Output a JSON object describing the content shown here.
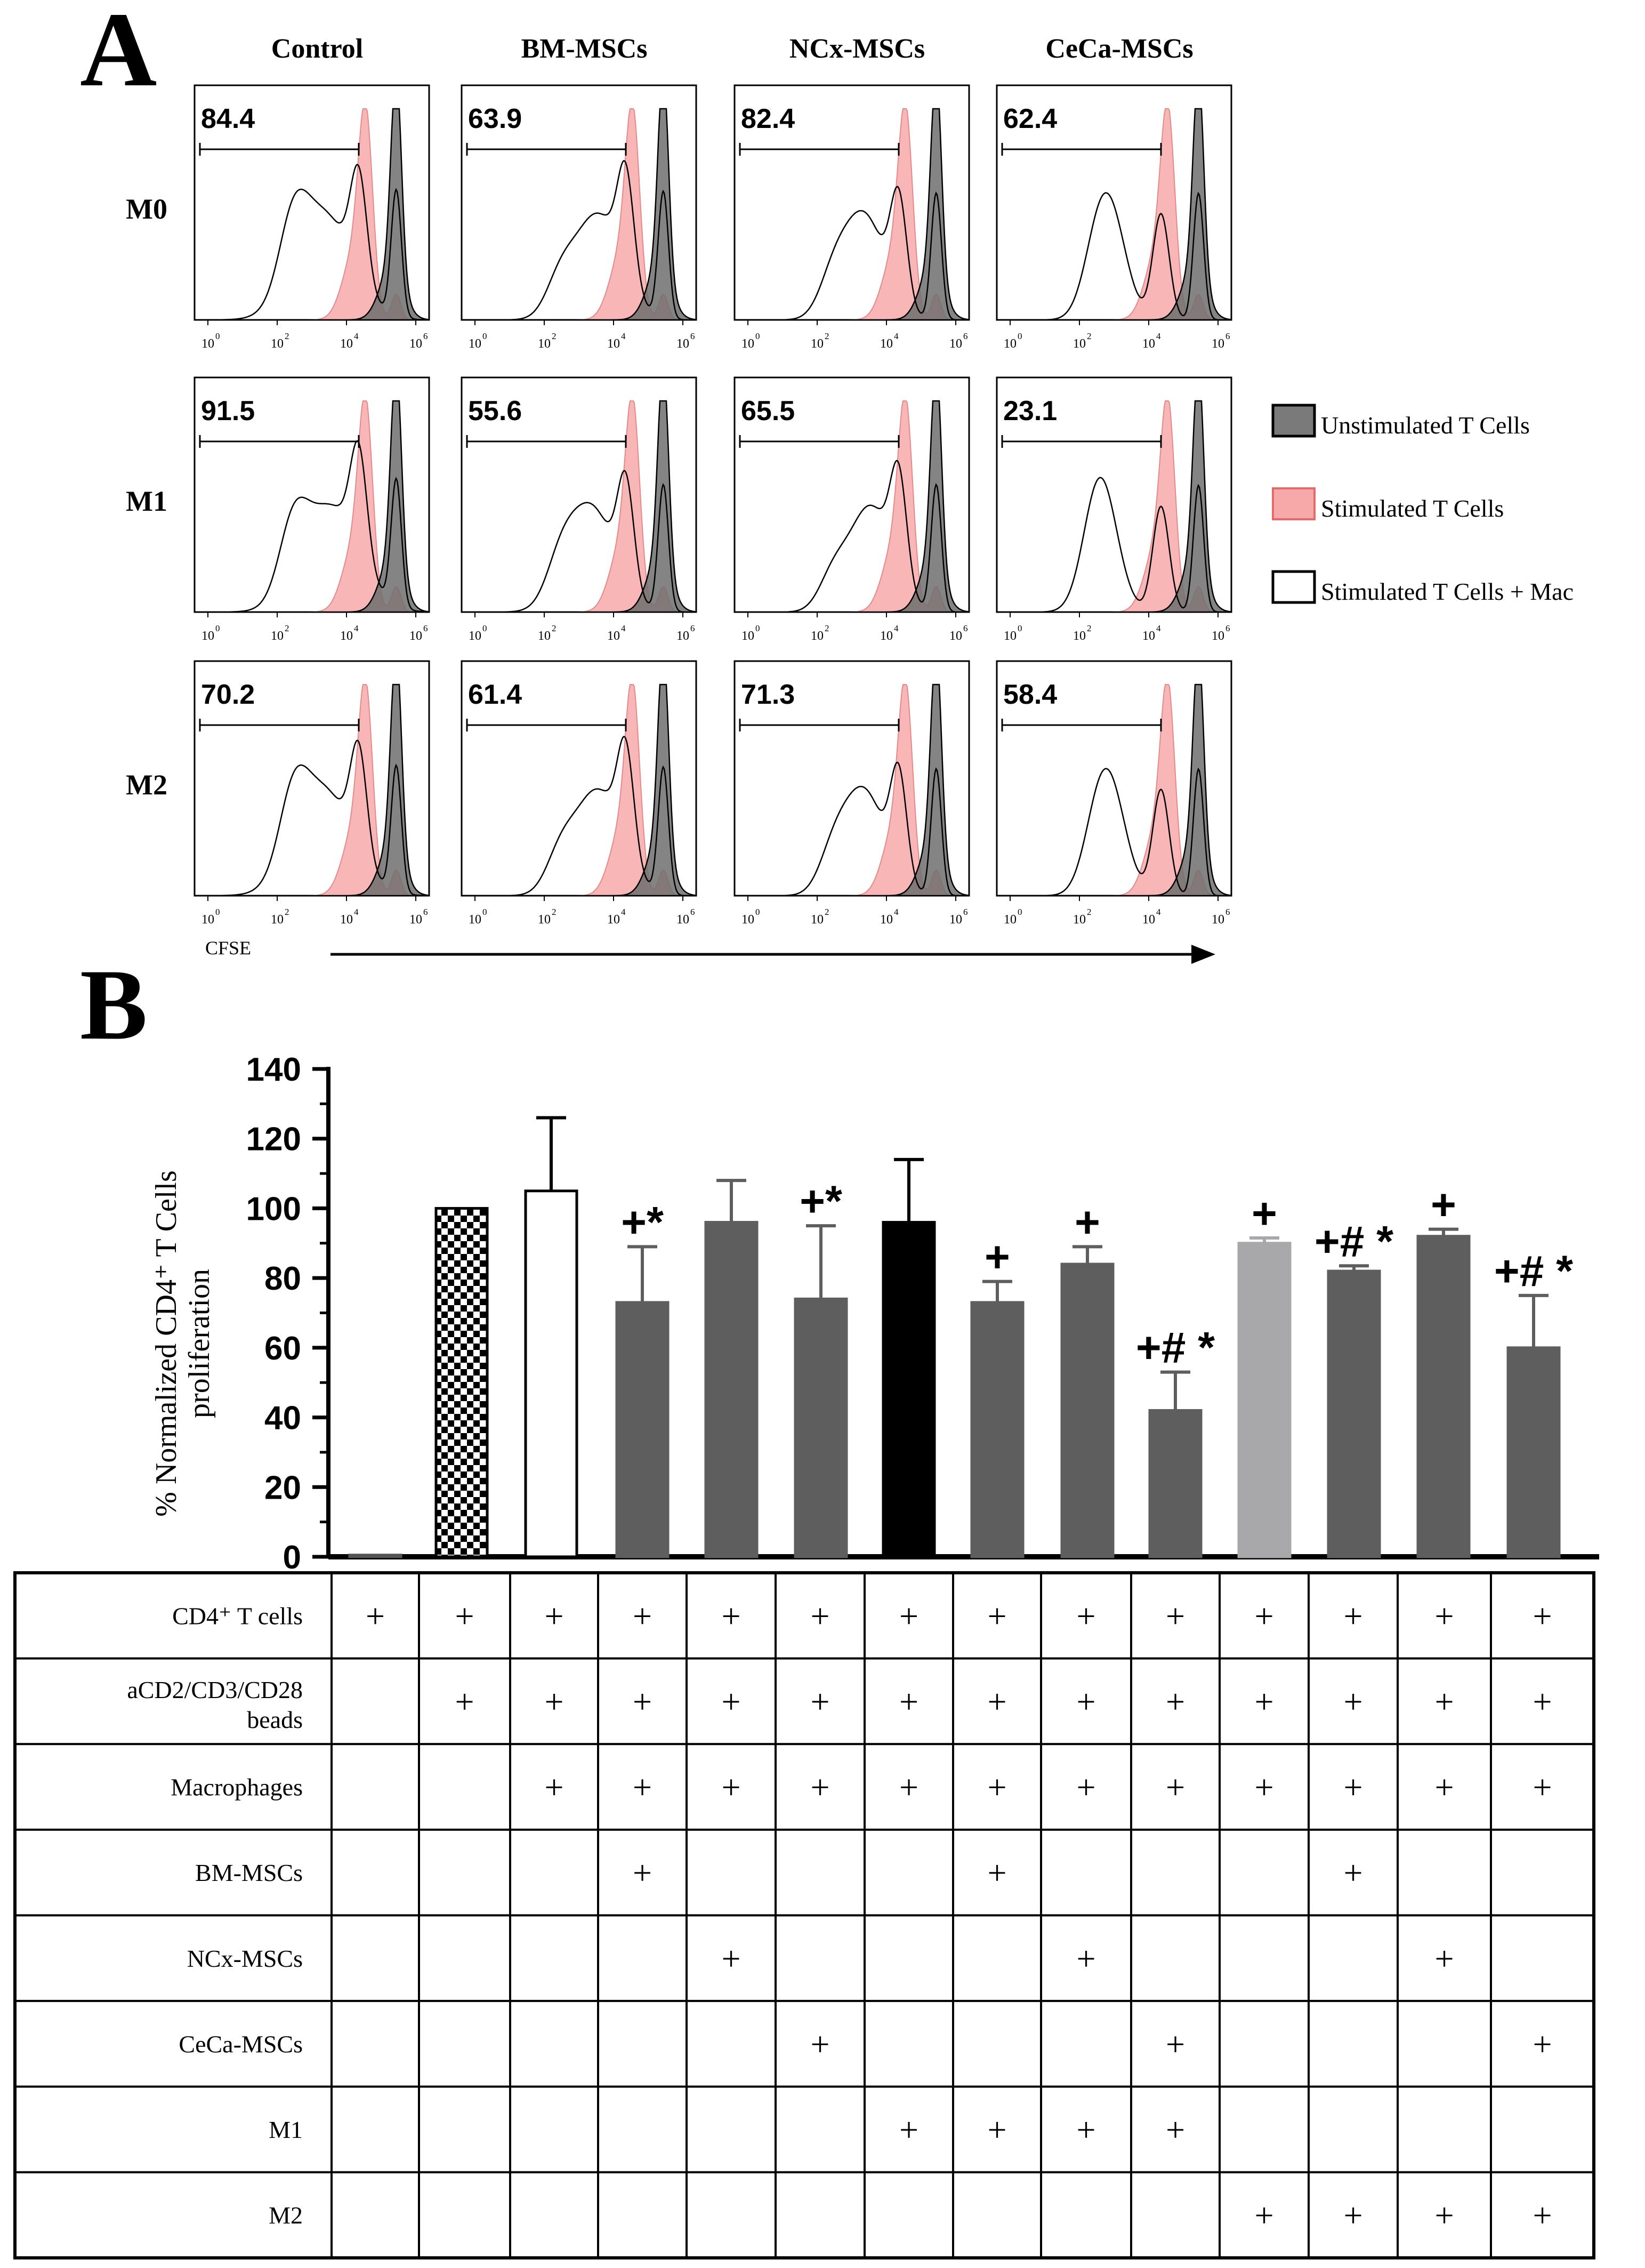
{
  "panel_a": {
    "label": "A",
    "columns": [
      "Control",
      "BM-MSCs",
      "NCx-MSCs",
      "CeCa-MSCs"
    ],
    "rows": [
      "M0",
      "M1",
      "M2"
    ],
    "gates": [
      [
        "84.4",
        "63.9",
        "82.4",
        "62.4"
      ],
      [
        "91.5",
        "55.6",
        "65.5",
        "23.1"
      ],
      [
        "70.2",
        "61.4",
        "71.3",
        "58.4"
      ]
    ],
    "tick_mantissa": "10",
    "tick_exponents": [
      "0",
      "2",
      "4",
      "6"
    ],
    "axis_label": "CFSE",
    "legend": [
      {
        "label": "Unstimulated T Cells",
        "color": "#7a7a7a"
      },
      {
        "label": "Stimulated T Cells",
        "color": "#f7a9aa"
      },
      {
        "label": "Stimulated T Cells + Mac",
        "color": "#ffffff"
      }
    ]
  },
  "panel_b": {
    "label": "B",
    "ylabel_line1": "% Normalized CD4⁺ T Cells",
    "ylabel_line2": "proliferation"
  },
  "chart_data": {
    "type": "bar",
    "title": "",
    "xlabel": "",
    "ylabel": "% Normalized CD4⁺ T Cells proliferation",
    "ylim": [
      0,
      140
    ],
    "yticks": [
      "0",
      "20",
      "40",
      "60",
      "80",
      "100",
      "120",
      "140"
    ],
    "values": [
      0.5,
      100,
      105,
      73,
      96,
      74,
      96,
      73,
      84,
      42,
      90,
      82,
      92,
      60
    ],
    "errors": [
      0,
      0,
      21,
      16,
      12,
      21,
      18,
      6,
      5,
      11,
      1.5,
      1.5,
      2,
      15
    ],
    "colors": [
      "#555555",
      "checker",
      "#ffffff",
      "#5e5e5e",
      "#5e5e5e",
      "#5e5e5e",
      "#000000",
      "#5e5e5e",
      "#5e5e5e",
      "#5e5e5e",
      "#a8a8aa",
      "#5e5e5e",
      "#5e5e5e",
      "#5e5e5e"
    ],
    "annotations": [
      "",
      "",
      "",
      "+*",
      "",
      "+*",
      "",
      "+",
      "+",
      "+# *",
      "+",
      "+# *",
      "+",
      "+# *"
    ]
  },
  "table": {
    "rows": [
      {
        "label": "CD4⁺ T cells",
        "marks": [
          "+",
          "+",
          "+",
          "+",
          "+",
          "+",
          "+",
          "+",
          "+",
          "+",
          "+",
          "+",
          "+",
          "+"
        ]
      },
      {
        "label": "aCD2/CD3/CD28",
        "label2": "beads",
        "marks": [
          "",
          "+",
          "+",
          "+",
          "+",
          "+",
          "+",
          "+",
          "+",
          "+",
          "+",
          "+",
          "+",
          "+"
        ]
      },
      {
        "label": "Macrophages",
        "marks": [
          "",
          "",
          "+",
          "+",
          "+",
          "+",
          "+",
          "+",
          "+",
          "+",
          "+",
          "+",
          "+",
          "+"
        ]
      },
      {
        "label": "BM-MSCs",
        "marks": [
          "",
          "",
          "",
          "+",
          "",
          "",
          "",
          "+",
          "",
          "",
          "",
          "+",
          "",
          ""
        ]
      },
      {
        "label": "NCx-MSCs",
        "marks": [
          "",
          "",
          "",
          "",
          "+",
          "",
          "",
          "",
          "+",
          "",
          "",
          "",
          "+",
          ""
        ]
      },
      {
        "label": "CeCa-MSCs",
        "marks": [
          "",
          "",
          "",
          "",
          "",
          "+",
          "",
          "",
          "",
          "+",
          "",
          "",
          "",
          "+"
        ]
      },
      {
        "label": "M1",
        "marks": [
          "",
          "",
          "",
          "",
          "",
          "",
          "+",
          "+",
          "+",
          "+",
          "",
          "",
          "",
          ""
        ]
      },
      {
        "label": "M2",
        "marks": [
          "",
          "",
          "",
          "",
          "",
          "",
          "",
          "",
          "",
          "",
          "+",
          "+",
          "+",
          "+"
        ]
      }
    ]
  }
}
